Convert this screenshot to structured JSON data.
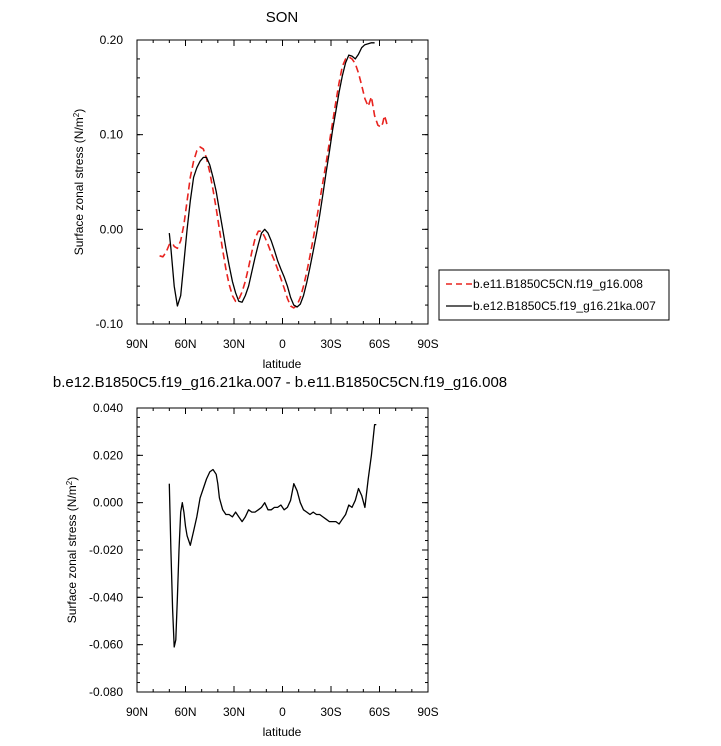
{
  "chart_data": [
    {
      "type": "line",
      "title": "SON",
      "xlabel": "latitude",
      "ylabel": "Surface zonal stress (N/m",
      "ylabel_superscript": "2",
      "ylabel_close": ")",
      "x_ticks": [
        90,
        60,
        30,
        0,
        -30,
        -60,
        -90
      ],
      "x_tick_labels": [
        "90N",
        "60N",
        "30N",
        "0",
        "30S",
        "60S",
        "90S"
      ],
      "xlim": [
        90,
        -90
      ],
      "ylim": [
        -0.1,
        0.2
      ],
      "y_ticks": [
        -0.1,
        0.0,
        0.1,
        0.2
      ],
      "y_tick_labels": [
        "-0.10",
        "0.00",
        "0.10",
        "0.20"
      ],
      "legend_position": "right",
      "series": [
        {
          "name": "b.e11.B1850C5CN.f19_g16.008",
          "color": "#e8231f",
          "dash": "dashed",
          "x": [
            76,
            74,
            72,
            70,
            68,
            67,
            65,
            63,
            61,
            59,
            57,
            55,
            53,
            51,
            49,
            47,
            45,
            43,
            41,
            39,
            37,
            35,
            33,
            31,
            29,
            27,
            25,
            23,
            21,
            19,
            17,
            15,
            13,
            11,
            9,
            7,
            5,
            3,
            1,
            -1,
            -3,
            -5,
            -7,
            -9,
            -11,
            -13,
            -15,
            -17,
            -19,
            -21,
            -23,
            -25,
            -27,
            -29,
            -31,
            -33,
            -35,
            -37,
            -39,
            -41,
            -43,
            -45,
            -47,
            -49,
            -51,
            -53,
            -55,
            -57,
            -59,
            -61,
            -62,
            -63,
            -64,
            -65
          ],
          "y": [
            -0.028,
            -0.029,
            -0.024,
            -0.016,
            -0.015,
            -0.018,
            -0.02,
            -0.012,
            0.005,
            0.03,
            0.055,
            0.072,
            0.083,
            0.087,
            0.085,
            0.075,
            0.06,
            0.042,
            0.022,
            0.0,
            -0.022,
            -0.042,
            -0.058,
            -0.07,
            -0.076,
            -0.074,
            -0.066,
            -0.055,
            -0.04,
            -0.024,
            -0.01,
            -0.002,
            -0.002,
            -0.008,
            -0.016,
            -0.025,
            -0.033,
            -0.042,
            -0.052,
            -0.062,
            -0.073,
            -0.081,
            -0.083,
            -0.08,
            -0.072,
            -0.06,
            -0.045,
            -0.028,
            -0.01,
            0.01,
            0.03,
            0.05,
            0.07,
            0.092,
            0.113,
            0.135,
            0.155,
            0.172,
            0.18,
            0.182,
            0.18,
            0.175,
            0.165,
            0.152,
            0.138,
            0.13,
            0.14,
            0.12,
            0.11,
            0.108,
            0.112,
            0.12,
            0.115,
            0.108
          ]
        },
        {
          "name": "b.e12.B1850C5.f19_g16.21ka.007",
          "color": "#000000",
          "dash": "solid",
          "x": [
            70,
            69,
            67,
            65,
            63,
            61,
            59,
            57,
            55,
            53,
            51,
            49,
            47,
            45,
            43,
            41,
            39,
            37,
            35,
            33,
            31,
            29,
            27,
            25,
            23,
            21,
            19,
            17,
            15,
            13,
            11,
            9,
            7,
            5,
            3,
            1,
            -1,
            -3,
            -5,
            -7,
            -9,
            -11,
            -13,
            -15,
            -17,
            -19,
            -21,
            -23,
            -25,
            -27,
            -29,
            -31,
            -33,
            -35,
            -37,
            -39,
            -41,
            -43,
            -45,
            -47,
            -49,
            -51,
            -53,
            -55,
            -57
          ],
          "y": [
            -0.004,
            -0.02,
            -0.06,
            -0.081,
            -0.07,
            -0.035,
            0.0,
            0.03,
            0.055,
            0.065,
            0.072,
            0.076,
            0.076,
            0.068,
            0.055,
            0.04,
            0.02,
            0.0,
            -0.02,
            -0.038,
            -0.055,
            -0.067,
            -0.076,
            -0.077,
            -0.07,
            -0.06,
            -0.045,
            -0.03,
            -0.016,
            -0.004,
            0.0,
            -0.004,
            -0.012,
            -0.022,
            -0.033,
            -0.042,
            -0.05,
            -0.06,
            -0.072,
            -0.08,
            -0.082,
            -0.079,
            -0.07,
            -0.056,
            -0.04,
            -0.023,
            -0.005,
            0.015,
            0.037,
            0.06,
            0.082,
            0.105,
            0.125,
            0.145,
            0.162,
            0.176,
            0.184,
            0.183,
            0.18,
            0.185,
            0.192,
            0.195,
            0.196,
            0.197,
            0.197
          ]
        }
      ]
    },
    {
      "type": "line",
      "title": "b.e12.B1850C5.f19_g16.21ka.007 - b.e11.B1850C5CN.f19_g16.008",
      "xlabel": "latitude",
      "ylabel": "Surface zonal stress (N/m",
      "ylabel_superscript": "2",
      "ylabel_close": ")",
      "x_ticks": [
        90,
        60,
        30,
        0,
        -30,
        -60,
        -90
      ],
      "x_tick_labels": [
        "90N",
        "60N",
        "30N",
        "0",
        "30S",
        "60S",
        "90S"
      ],
      "xlim": [
        90,
        -90
      ],
      "ylim": [
        -0.08,
        0.04
      ],
      "y_ticks": [
        -0.08,
        -0.06,
        -0.04,
        -0.02,
        0.0,
        0.02,
        0.04
      ],
      "y_tick_labels": [
        "-0.080",
        "-0.060",
        "-0.040",
        "-0.020",
        "0.000",
        "0.020",
        "0.040"
      ],
      "series": [
        {
          "color": "#000000",
          "dash": "solid",
          "x": [
            70,
            69,
            68,
            67,
            66,
            65,
            64,
            63,
            62,
            61,
            60,
            59,
            58,
            57,
            55,
            53,
            51,
            49,
            47,
            45,
            43,
            41,
            40,
            39,
            37,
            35,
            33,
            31,
            29,
            27,
            25,
            23,
            21,
            19,
            17,
            15,
            13,
            11,
            9,
            7,
            5,
            3,
            1,
            -1,
            -3,
            -5,
            -7,
            -9,
            -11,
            -13,
            -15,
            -17,
            -19,
            -21,
            -23,
            -25,
            -27,
            -29,
            -31,
            -33,
            -35,
            -37,
            -39,
            -41,
            -43,
            -45,
            -47,
            -49,
            -51,
            -53,
            -55,
            -57,
            -58
          ],
          "y": [
            0.008,
            -0.02,
            -0.045,
            -0.061,
            -0.058,
            -0.04,
            -0.02,
            -0.004,
            0.0,
            -0.004,
            -0.01,
            -0.014,
            -0.016,
            -0.018,
            -0.012,
            -0.006,
            0.002,
            0.006,
            0.01,
            0.013,
            0.014,
            0.012,
            0.008,
            0.002,
            -0.003,
            -0.005,
            -0.005,
            -0.006,
            -0.004,
            -0.006,
            -0.008,
            -0.006,
            -0.003,
            -0.004,
            -0.004,
            -0.003,
            -0.002,
            0.0,
            -0.003,
            -0.003,
            -0.002,
            -0.002,
            -0.001,
            -0.003,
            -0.002,
            0.001,
            0.008,
            0.005,
            0.0,
            -0.003,
            -0.004,
            -0.005,
            -0.004,
            -0.005,
            -0.005,
            -0.006,
            -0.007,
            -0.008,
            -0.008,
            -0.008,
            -0.009,
            -0.007,
            -0.005,
            -0.001,
            -0.002,
            0.001,
            0.006,
            0.003,
            -0.002,
            0.01,
            0.02,
            0.033,
            0.033
          ]
        }
      ]
    }
  ]
}
